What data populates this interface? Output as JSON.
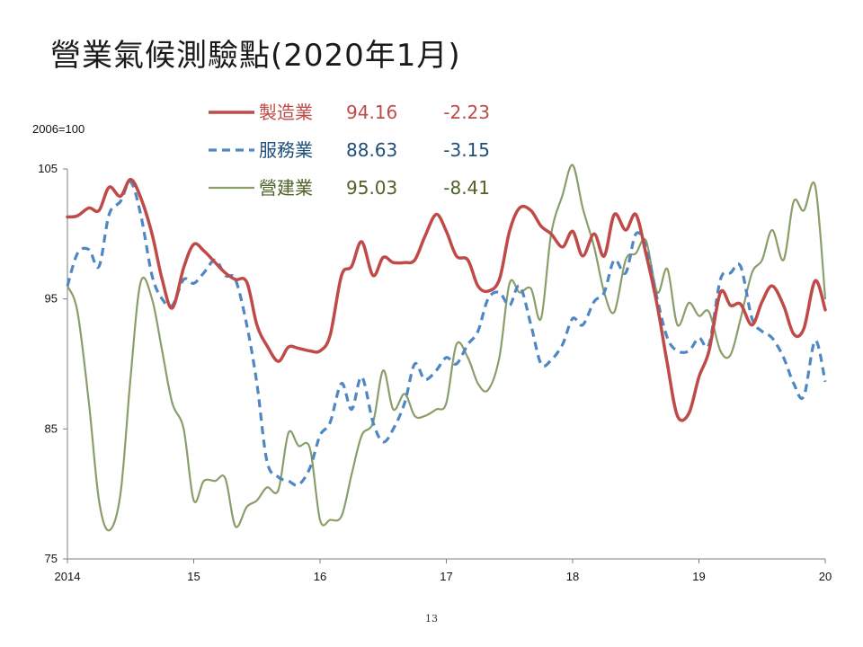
{
  "page": {
    "title": "營業氣候測驗點(2020年1月)",
    "page_number": "13"
  },
  "chart_data": {
    "type": "line",
    "title": "營業氣候測驗點(2020年1月)",
    "base_label": "2006=100",
    "xlabel": "",
    "ylabel": "",
    "ylim": [
      75,
      105
    ],
    "yticks": [
      75,
      85,
      95,
      105
    ],
    "xlim": [
      2014,
      2020
    ],
    "xticks": [
      {
        "value": 2014,
        "label": "2014"
      },
      {
        "value": 2015,
        "label": "15"
      },
      {
        "value": 2016,
        "label": "16"
      },
      {
        "value": 2017,
        "label": "17"
      },
      {
        "value": 2018,
        "label": "18"
      },
      {
        "value": 2019,
        "label": "19"
      },
      {
        "value": 2020,
        "label": "20"
      }
    ],
    "grid": false,
    "legend_position": "top-center",
    "series": [
      {
        "name": "製造業",
        "latest": "94.16",
        "change": "-2.23",
        "color": "#be4b48",
        "dash": "solid",
        "width": 3.5,
        "points": [
          [
            2014.0,
            101.3
          ],
          [
            2014.08,
            101.4
          ],
          [
            2014.17,
            102.0
          ],
          [
            2014.25,
            101.8
          ],
          [
            2014.33,
            103.6
          ],
          [
            2014.42,
            102.9
          ],
          [
            2014.5,
            104.2
          ],
          [
            2014.58,
            102.8
          ],
          [
            2014.67,
            100.0
          ],
          [
            2014.75,
            96.5
          ],
          [
            2014.83,
            94.3
          ],
          [
            2014.92,
            97.4
          ],
          [
            2015.0,
            99.2
          ],
          [
            2015.08,
            98.7
          ],
          [
            2015.17,
            97.8
          ],
          [
            2015.25,
            97.0
          ],
          [
            2015.33,
            96.5
          ],
          [
            2015.42,
            96.3
          ],
          [
            2015.5,
            93.0
          ],
          [
            2015.58,
            91.4
          ],
          [
            2015.67,
            90.2
          ],
          [
            2015.75,
            91.3
          ],
          [
            2015.83,
            91.2
          ],
          [
            2015.92,
            91.0
          ],
          [
            2016.0,
            91.0
          ],
          [
            2016.08,
            92.2
          ],
          [
            2016.17,
            96.8
          ],
          [
            2016.25,
            97.5
          ],
          [
            2016.33,
            99.4
          ],
          [
            2016.42,
            96.8
          ],
          [
            2016.5,
            98.2
          ],
          [
            2016.58,
            97.8
          ],
          [
            2016.67,
            97.8
          ],
          [
            2016.75,
            98.0
          ],
          [
            2016.83,
            99.8
          ],
          [
            2016.92,
            101.5
          ],
          [
            2017.0,
            100.2
          ],
          [
            2017.08,
            98.3
          ],
          [
            2017.17,
            98.0
          ],
          [
            2017.25,
            96.0
          ],
          [
            2017.33,
            95.6
          ],
          [
            2017.42,
            96.5
          ],
          [
            2017.5,
            100.2
          ],
          [
            2017.58,
            102.0
          ],
          [
            2017.67,
            101.8
          ],
          [
            2017.75,
            100.6
          ],
          [
            2017.83,
            100.0
          ],
          [
            2017.92,
            99.0
          ],
          [
            2018.0,
            100.2
          ],
          [
            2018.08,
            98.3
          ],
          [
            2018.17,
            100.0
          ],
          [
            2018.25,
            98.3
          ],
          [
            2018.33,
            101.5
          ],
          [
            2018.42,
            100.3
          ],
          [
            2018.5,
            101.5
          ],
          [
            2018.58,
            98.5
          ],
          [
            2018.67,
            94.5
          ],
          [
            2018.75,
            90.0
          ],
          [
            2018.83,
            86.0
          ],
          [
            2018.92,
            86.2
          ],
          [
            2019.0,
            89.0
          ],
          [
            2019.08,
            91.0
          ],
          [
            2019.17,
            95.5
          ],
          [
            2019.25,
            94.5
          ],
          [
            2019.33,
            94.6
          ],
          [
            2019.42,
            93.0
          ],
          [
            2019.5,
            94.8
          ],
          [
            2019.58,
            96.0
          ],
          [
            2019.67,
            94.5
          ],
          [
            2019.75,
            92.3
          ],
          [
            2019.83,
            92.7
          ],
          [
            2019.92,
            96.4
          ],
          [
            2020.0,
            94.16
          ]
        ]
      },
      {
        "name": "服務業",
        "latest": "88.63",
        "change": "-3.15",
        "color": "#4f87c4",
        "dash": "dashed",
        "width": 3.2,
        "points": [
          [
            2014.0,
            96.0
          ],
          [
            2014.08,
            98.5
          ],
          [
            2014.17,
            98.8
          ],
          [
            2014.25,
            97.5
          ],
          [
            2014.33,
            101.5
          ],
          [
            2014.42,
            102.5
          ],
          [
            2014.5,
            104.0
          ],
          [
            2014.58,
            101.5
          ],
          [
            2014.67,
            96.8
          ],
          [
            2014.75,
            95.0
          ],
          [
            2014.83,
            94.5
          ],
          [
            2014.92,
            96.5
          ],
          [
            2015.0,
            96.2
          ],
          [
            2015.08,
            97.0
          ],
          [
            2015.17,
            98.0
          ],
          [
            2015.25,
            96.8
          ],
          [
            2015.33,
            96.5
          ],
          [
            2015.42,
            93.0
          ],
          [
            2015.5,
            88.5
          ],
          [
            2015.58,
            82.5
          ],
          [
            2015.67,
            81.3
          ],
          [
            2015.75,
            81.0
          ],
          [
            2015.83,
            80.7
          ],
          [
            2015.92,
            82.0
          ],
          [
            2016.0,
            84.5
          ],
          [
            2016.08,
            85.5
          ],
          [
            2016.17,
            88.5
          ],
          [
            2016.25,
            86.5
          ],
          [
            2016.33,
            89.0
          ],
          [
            2016.42,
            85.5
          ],
          [
            2016.5,
            84.0
          ],
          [
            2016.58,
            85.0
          ],
          [
            2016.67,
            87.0
          ],
          [
            2016.75,
            90.0
          ],
          [
            2016.83,
            88.8
          ],
          [
            2016.92,
            89.5
          ],
          [
            2017.0,
            90.5
          ],
          [
            2017.08,
            90.0
          ],
          [
            2017.17,
            91.5
          ],
          [
            2017.25,
            92.5
          ],
          [
            2017.33,
            95.0
          ],
          [
            2017.42,
            95.5
          ],
          [
            2017.5,
            94.5
          ],
          [
            2017.58,
            96.0
          ],
          [
            2017.67,
            93.0
          ],
          [
            2017.75,
            90.0
          ],
          [
            2017.83,
            90.3
          ],
          [
            2017.92,
            91.5
          ],
          [
            2018.0,
            93.5
          ],
          [
            2018.08,
            93.0
          ],
          [
            2018.17,
            94.8
          ],
          [
            2018.25,
            95.5
          ],
          [
            2018.33,
            98.0
          ],
          [
            2018.42,
            97.0
          ],
          [
            2018.5,
            100.0
          ],
          [
            2018.58,
            99.0
          ],
          [
            2018.67,
            95.0
          ],
          [
            2018.75,
            92.0
          ],
          [
            2018.83,
            91.0
          ],
          [
            2018.92,
            91.0
          ],
          [
            2019.0,
            92.0
          ],
          [
            2019.08,
            91.5
          ],
          [
            2019.17,
            96.5
          ],
          [
            2019.25,
            97.0
          ],
          [
            2019.33,
            97.5
          ],
          [
            2019.42,
            93.5
          ],
          [
            2019.5,
            92.5
          ],
          [
            2019.58,
            92.0
          ],
          [
            2019.67,
            90.5
          ],
          [
            2019.75,
            88.5
          ],
          [
            2019.83,
            87.5
          ],
          [
            2019.92,
            91.8
          ],
          [
            2020.0,
            88.63
          ]
        ]
      },
      {
        "name": "營建業",
        "latest": "95.03",
        "change": "-8.41",
        "color": "#8a9e6a",
        "dash": "solid",
        "width": 2.2,
        "points": [
          [
            2014.0,
            96.0
          ],
          [
            2014.08,
            94.0
          ],
          [
            2014.17,
            87.0
          ],
          [
            2014.25,
            79.5
          ],
          [
            2014.33,
            77.2
          ],
          [
            2014.42,
            80.0
          ],
          [
            2014.5,
            89.0
          ],
          [
            2014.58,
            96.3
          ],
          [
            2014.67,
            95.0
          ],
          [
            2014.75,
            91.0
          ],
          [
            2014.83,
            87.0
          ],
          [
            2014.92,
            85.0
          ],
          [
            2015.0,
            79.5
          ],
          [
            2015.08,
            81.0
          ],
          [
            2015.17,
            81.0
          ],
          [
            2015.25,
            81.2
          ],
          [
            2015.33,
            77.5
          ],
          [
            2015.42,
            79.0
          ],
          [
            2015.5,
            79.5
          ],
          [
            2015.58,
            80.5
          ],
          [
            2015.67,
            80.3
          ],
          [
            2015.75,
            84.7
          ],
          [
            2015.83,
            83.7
          ],
          [
            2015.92,
            83.5
          ],
          [
            2016.0,
            78.0
          ],
          [
            2016.08,
            78.0
          ],
          [
            2016.17,
            78.3
          ],
          [
            2016.25,
            81.5
          ],
          [
            2016.33,
            84.5
          ],
          [
            2016.42,
            85.5
          ],
          [
            2016.5,
            89.5
          ],
          [
            2016.58,
            86.5
          ],
          [
            2016.67,
            87.7
          ],
          [
            2016.75,
            86.0
          ],
          [
            2016.83,
            86.0
          ],
          [
            2016.92,
            86.5
          ],
          [
            2017.0,
            87.0
          ],
          [
            2017.08,
            91.5
          ],
          [
            2017.17,
            90.5
          ],
          [
            2017.25,
            88.5
          ],
          [
            2017.33,
            88.0
          ],
          [
            2017.42,
            90.5
          ],
          [
            2017.5,
            96.2
          ],
          [
            2017.58,
            95.5
          ],
          [
            2017.67,
            95.8
          ],
          [
            2017.75,
            93.5
          ],
          [
            2017.83,
            100.0
          ],
          [
            2017.92,
            103.0
          ],
          [
            2018.0,
            105.3
          ],
          [
            2018.08,
            102.0
          ],
          [
            2018.17,
            99.0
          ],
          [
            2018.25,
            95.5
          ],
          [
            2018.33,
            94.0
          ],
          [
            2018.42,
            98.0
          ],
          [
            2018.5,
            98.5
          ],
          [
            2018.58,
            99.5
          ],
          [
            2018.67,
            95.5
          ],
          [
            2018.75,
            97.3
          ],
          [
            2018.83,
            93.0
          ],
          [
            2018.92,
            94.7
          ],
          [
            2019.0,
            93.7
          ],
          [
            2019.08,
            94.0
          ],
          [
            2019.17,
            91.0
          ],
          [
            2019.25,
            90.7
          ],
          [
            2019.33,
            93.5
          ],
          [
            2019.42,
            97.0
          ],
          [
            2019.5,
            98.0
          ],
          [
            2019.58,
            100.3
          ],
          [
            2019.67,
            98.0
          ],
          [
            2019.75,
            102.5
          ],
          [
            2019.83,
            101.8
          ],
          [
            2019.92,
            103.7
          ],
          [
            2020.0,
            95.03
          ]
        ]
      }
    ]
  }
}
